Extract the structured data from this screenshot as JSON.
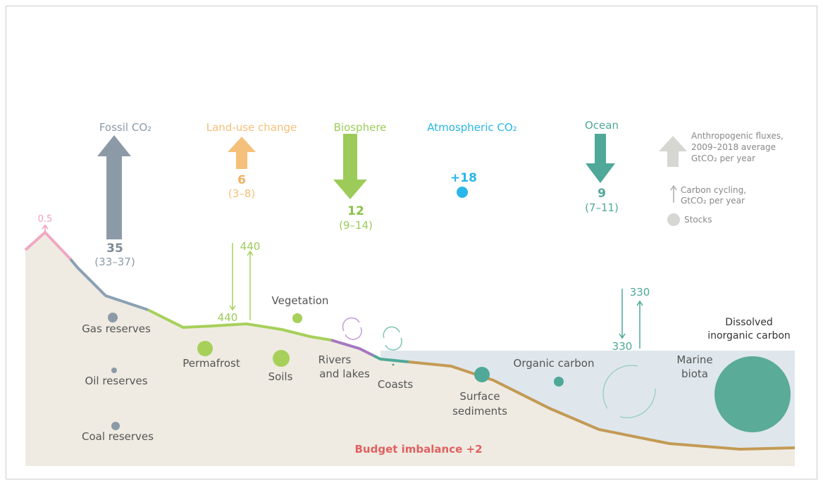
{
  "fluxes": [
    {
      "label": "Fossil CO₂",
      "value": "35",
      "range": "(33–37)"
    },
    {
      "label": "Land-use change",
      "value": "6",
      "range": "(3–8)"
    },
    {
      "label": "Biosphere",
      "value": "12",
      "range": "(9–14)"
    },
    {
      "label": "Atmospheric CO₂",
      "value": "+18"
    },
    {
      "label": "Ocean",
      "value": "9",
      "range": "(7–11)"
    }
  ],
  "legend": {
    "anthropogenic": [
      "Anthropogenic fluxes,",
      "2009–2018 average",
      "GtCO₂ per year"
    ],
    "cycling": [
      "Carbon cycling,",
      "GtCO₂ per year"
    ],
    "stocks": "Stocks"
  },
  "volcanic": "0.5",
  "land_cycle": {
    "down": "440",
    "up": "440"
  },
  "ocean_cycle": {
    "down": "330",
    "up": "330"
  },
  "stocks": {
    "gas": "Gas reserves",
    "oil": "Oil reserves",
    "coal": "Coal reserves",
    "permafrost": "Permafrost",
    "soils": "Soils",
    "vegetation": "Vegetation",
    "rivers": [
      "Rivers",
      "and lakes"
    ],
    "coasts": "Coasts",
    "sediments": [
      "Surface",
      "sediments"
    ],
    "organic": "Organic carbon",
    "biota": [
      "Marine",
      "biota"
    ],
    "dic": [
      "Dissolved",
      "inorganic carbon"
    ]
  },
  "imbalance": "Budget imbalance +2"
}
